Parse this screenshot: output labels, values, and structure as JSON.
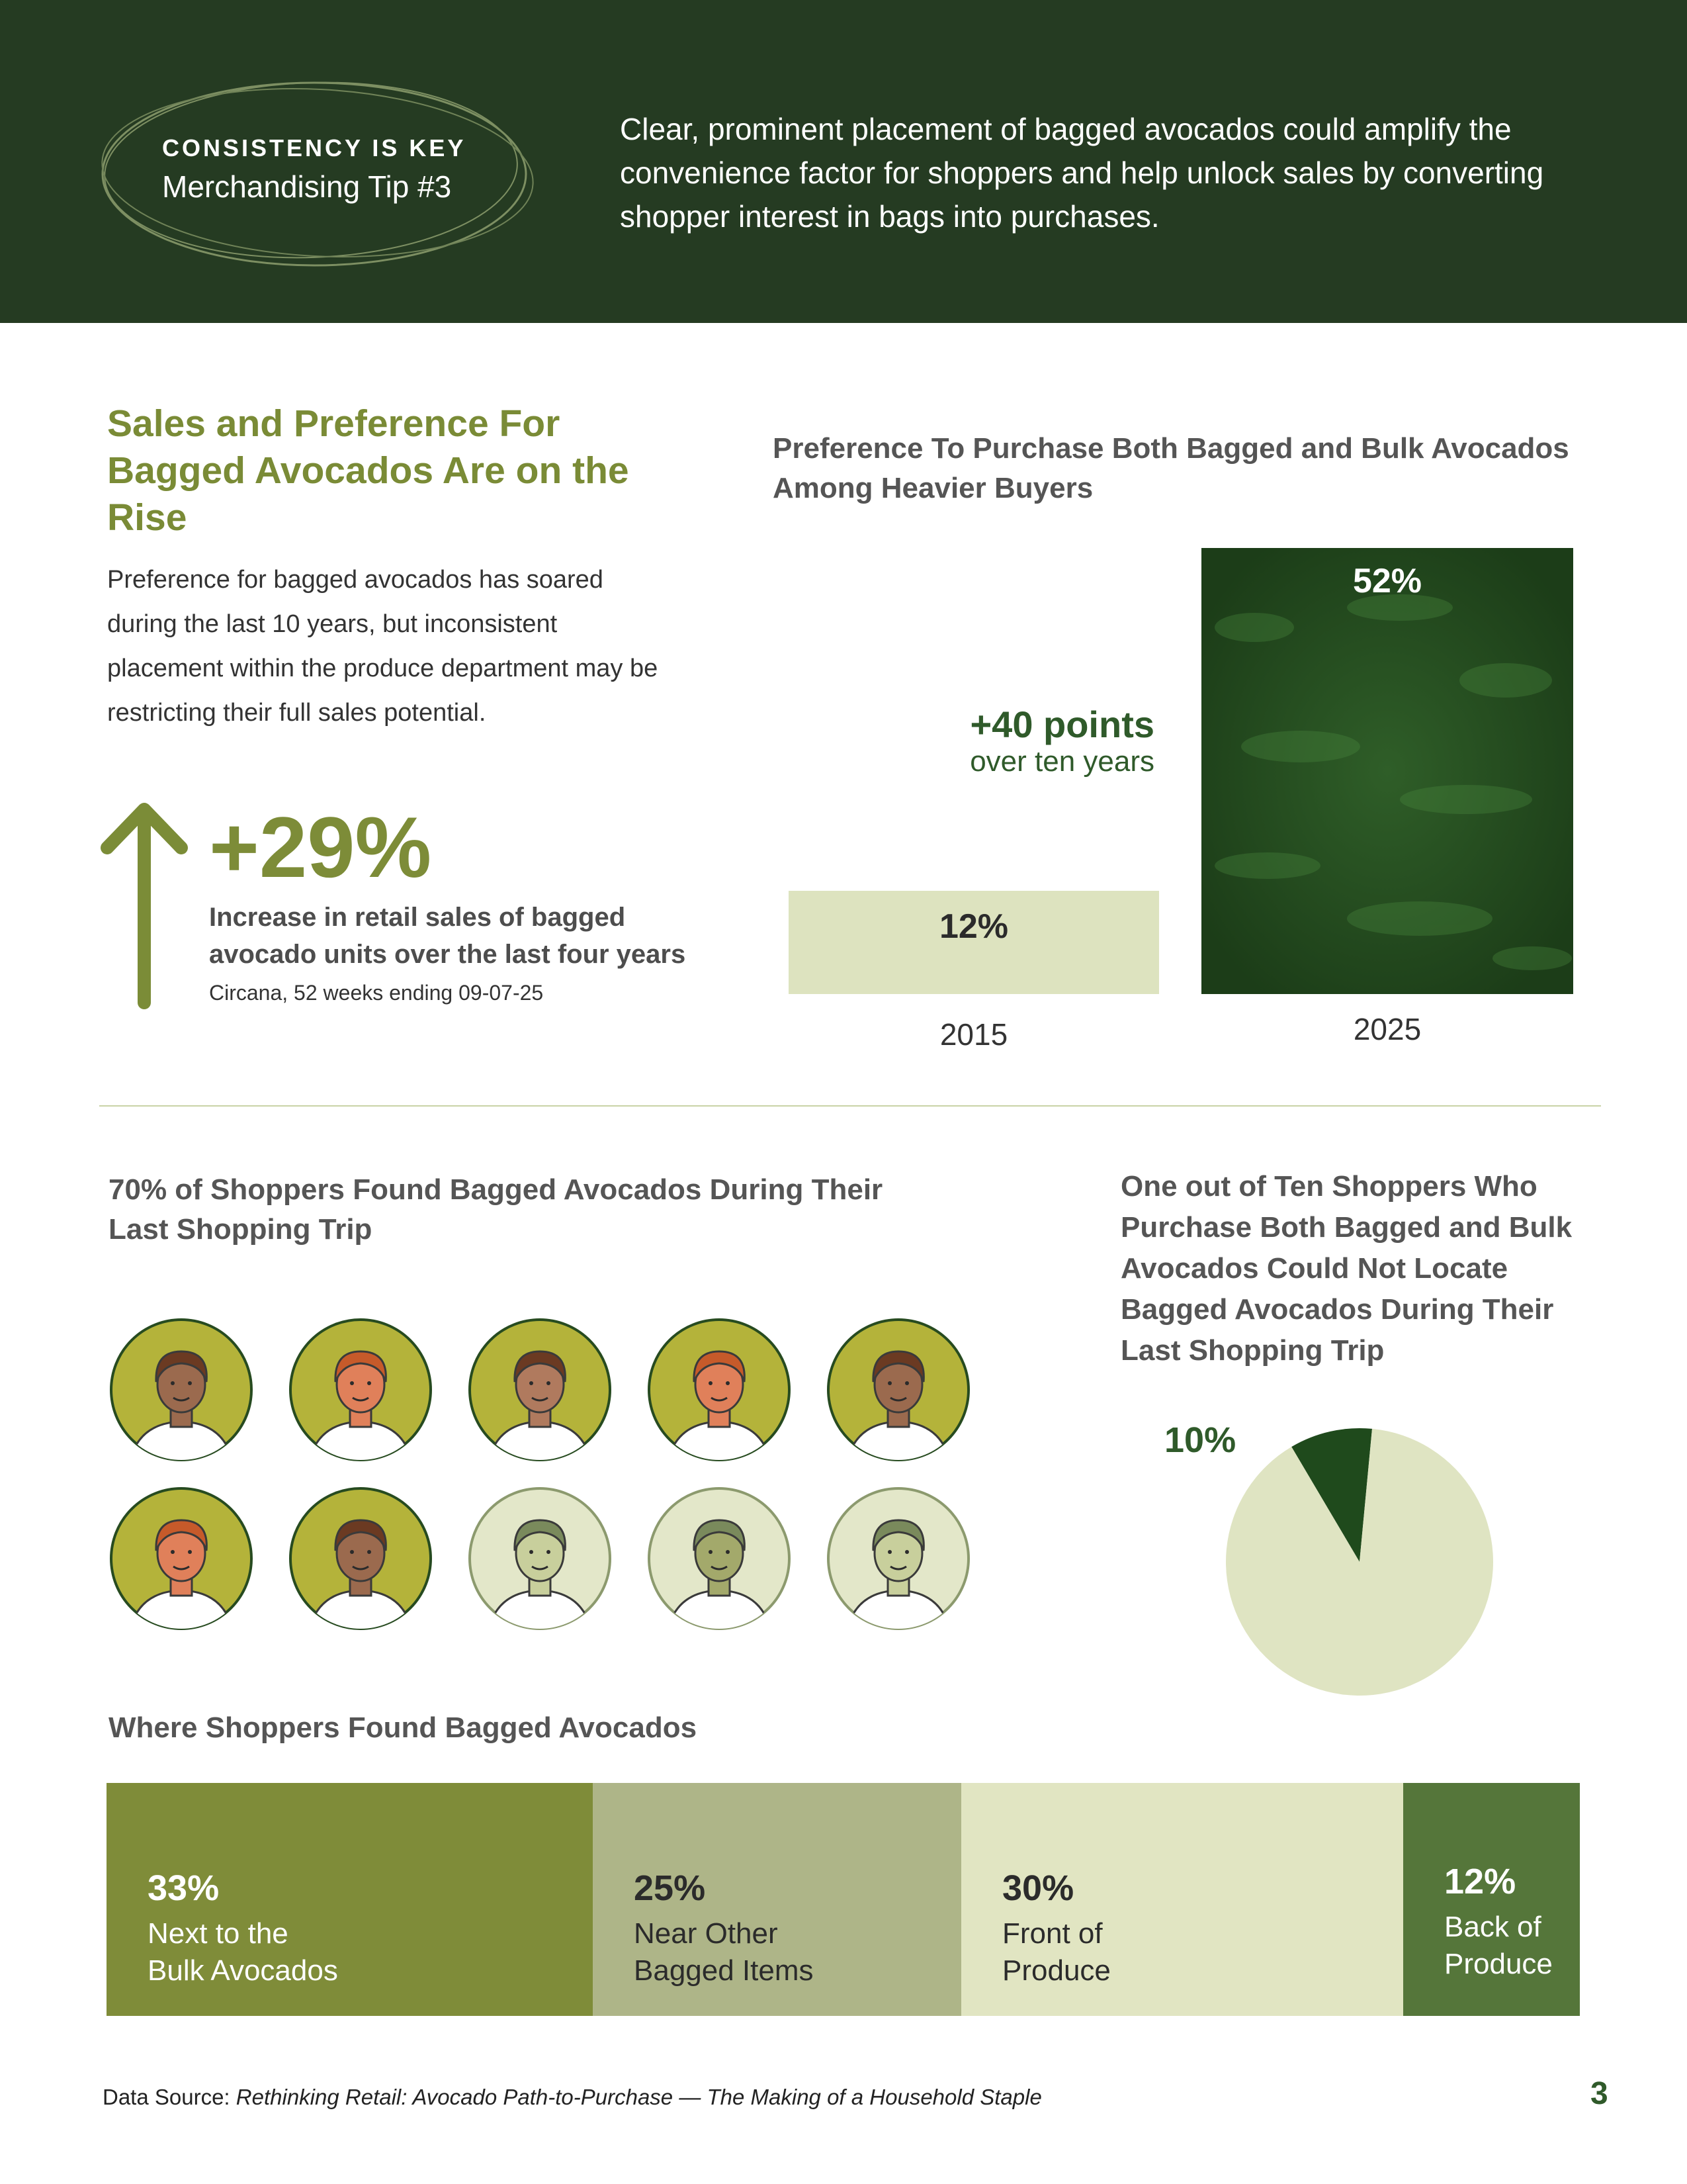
{
  "header": {
    "badge_title": "CONSISTENCY IS KEY",
    "badge_subtitle": "Merchandising Tip #3",
    "text": "Clear, prominent placement of bagged avocados could amplify the convenience factor for shoppers and help unlock sales by converting shopper interest in bags into purchases."
  },
  "section1": {
    "heading": "Sales and Preference For Bagged Avocados Are on the Rise",
    "body": "Preference for bagged avocados has soared during the last 10 years, but inconsistent placement within the produce department may be restricting their full sales potential.",
    "stat_value": "+29%",
    "stat_description": "Increase in retail sales of bagged avocado units over the last four years",
    "stat_source": "Circana, 52 weeks ending 09-07-25"
  },
  "chart_data": [
    {
      "type": "bar",
      "title": "Preference To Purchase Both Bagged and Bulk Avocados Among Heavier Buyers",
      "categories": [
        "2015",
        "2025"
      ],
      "values": [
        12,
        52
      ],
      "value_labels": [
        "12%",
        "52%"
      ],
      "annotation": "+40 points",
      "annotation_sub": "over ten years",
      "colors": [
        "#dde3bf",
        "#244a1f"
      ]
    },
    {
      "type": "pie",
      "title": "One out of Ten Shoppers Who Purchase Both Bagged and Bulk Avocados Could Not Locate Bagged Avocados During Their Last Shopping Trip",
      "values": [
        10,
        90
      ],
      "highlight_label": "10%",
      "colors": [
        "#1f4a1c",
        "#dfe4c2"
      ]
    },
    {
      "type": "bar",
      "title": "Where Shoppers Found Bagged Avocados",
      "categories": [
        "Next to the Bulk Avocados",
        "Near Other Bagged Items",
        "Front of Produce",
        "Back of Produce"
      ],
      "values": [
        33,
        25,
        30,
        12
      ],
      "pct_labels": [
        "33%",
        "25%",
        "30%",
        "12%"
      ],
      "label_lines": [
        [
          "Next to the",
          "Bulk Avocados"
        ],
        [
          "Near Other",
          "Bagged Items"
        ],
        [
          "Front of",
          "Produce"
        ],
        [
          "Back of",
          "Produce"
        ]
      ],
      "colors": [
        "#7f8c39",
        "#aeb588",
        "#e1e5c2",
        "#55763a"
      ],
      "text_colors": [
        "#ffffff",
        "#2b2b2b",
        "#2b2b2b",
        "#ffffff"
      ]
    }
  ],
  "section2": {
    "title": "70% of Shoppers Found Bagged Avocados During Their Last Shopping Trip",
    "found_ratio": 0.7,
    "icon": "shopper-avatar-icon"
  },
  "footer": {
    "source_prefix": "Data Source: ",
    "source_title": "Rethinking Retail: Avocado Path-to-Purchase — The Making of a Household Staple",
    "page_number": "3"
  }
}
